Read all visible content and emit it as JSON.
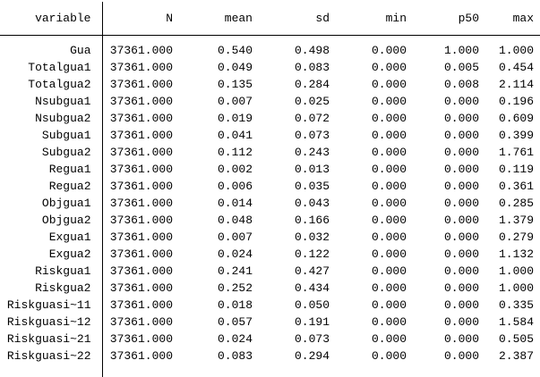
{
  "table": {
    "columns": [
      "variable",
      "N",
      "mean",
      "sd",
      "min",
      "p50",
      "max"
    ],
    "rows": [
      [
        "Gua",
        "37361.000",
        "0.540",
        "0.498",
        "0.000",
        "1.000",
        "1.000"
      ],
      [
        "Totalgua1",
        "37361.000",
        "0.049",
        "0.083",
        "0.000",
        "0.005",
        "0.454"
      ],
      [
        "Totalgua2",
        "37361.000",
        "0.135",
        "0.284",
        "0.000",
        "0.008",
        "2.114"
      ],
      [
        "Nsubgua1",
        "37361.000",
        "0.007",
        "0.025",
        "0.000",
        "0.000",
        "0.196"
      ],
      [
        "Nsubgua2",
        "37361.000",
        "0.019",
        "0.072",
        "0.000",
        "0.000",
        "0.609"
      ],
      [
        "Subgua1",
        "37361.000",
        "0.041",
        "0.073",
        "0.000",
        "0.000",
        "0.399"
      ],
      [
        "Subgua2",
        "37361.000",
        "0.112",
        "0.243",
        "0.000",
        "0.000",
        "1.761"
      ],
      [
        "Regua1",
        "37361.000",
        "0.002",
        "0.013",
        "0.000",
        "0.000",
        "0.119"
      ],
      [
        "Regua2",
        "37361.000",
        "0.006",
        "0.035",
        "0.000",
        "0.000",
        "0.361"
      ],
      [
        "Objgua1",
        "37361.000",
        "0.014",
        "0.043",
        "0.000",
        "0.000",
        "0.285"
      ],
      [
        "Objgua2",
        "37361.000",
        "0.048",
        "0.166",
        "0.000",
        "0.000",
        "1.379"
      ],
      [
        "Exgua1",
        "37361.000",
        "0.007",
        "0.032",
        "0.000",
        "0.000",
        "0.279"
      ],
      [
        "Exgua2",
        "37361.000",
        "0.024",
        "0.122",
        "0.000",
        "0.000",
        "1.132"
      ],
      [
        "Riskgua1",
        "37361.000",
        "0.241",
        "0.427",
        "0.000",
        "0.000",
        "1.000"
      ],
      [
        "Riskgua2",
        "37361.000",
        "0.252",
        "0.434",
        "0.000",
        "0.000",
        "1.000"
      ],
      [
        "Riskguasi~11",
        "37361.000",
        "0.018",
        "0.050",
        "0.000",
        "0.000",
        "0.335"
      ],
      [
        "Riskguasi~12",
        "37361.000",
        "0.057",
        "0.191",
        "0.000",
        "0.000",
        "1.584"
      ],
      [
        "Riskguasi~21",
        "37361.000",
        "0.024",
        "0.073",
        "0.000",
        "0.000",
        "0.505"
      ],
      [
        "Riskguasi~22",
        "37361.000",
        "0.083",
        "0.294",
        "0.000",
        "0.000",
        "2.387"
      ]
    ]
  },
  "colors": {
    "text": "#000000",
    "background": "#ffffff",
    "rule": "#000000"
  }
}
